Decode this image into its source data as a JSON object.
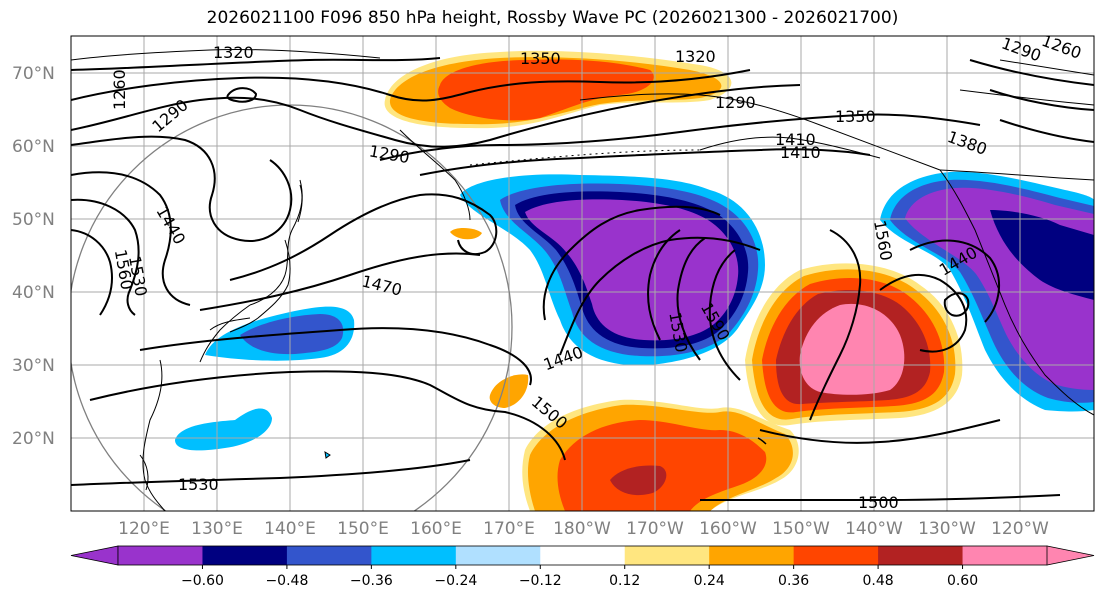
{
  "title": "2026021100 F096 850 hPa height, Rossby Wave PC (2026021300 - 2026021700)",
  "lat_labels": [
    "70°N",
    "60°N",
    "50°N",
    "40°N",
    "30°N",
    "20°N"
  ],
  "lon_labels": [
    "120°E",
    "130°E",
    "140°E",
    "150°E",
    "160°E",
    "170°E",
    "180°W",
    "170°W",
    "160°W",
    "150°W",
    "140°W",
    "130°W",
    "120°W"
  ],
  "colorbar": {
    "tick_labels": [
      "−0.60",
      "−0.48",
      "−0.36",
      "−0.24",
      "−0.12",
      "0.12",
      "0.24",
      "0.36",
      "0.48",
      "0.60"
    ],
    "colors": [
      "#9933cc",
      "#000080",
      "#3355cc",
      "#00bfff",
      "#b0e0ff",
      "#ffffff",
      "#ffe680",
      "#ffa500",
      "#ff4500",
      "#b22222",
      "#ff85b0"
    ],
    "extend": "both"
  },
  "contour_labels": [
    "1320",
    "1350",
    "1320",
    "1290",
    "1260",
    "1290",
    "1290",
    "1350",
    "1410",
    "1410",
    "1380",
    "1290",
    "1260",
    "1440",
    "1560",
    "1530",
    "1470",
    "1440",
    "1530",
    "1590",
    "1560",
    "1440",
    "1500",
    "1530",
    "1500"
  ],
  "colors": {
    "purple": "#9933cc",
    "navy": "#000080",
    "blue": "#3355cc",
    "cyan": "#00bfff",
    "lightblue": "#b0e0ff",
    "yellow": "#ffe680",
    "orange": "#ffa500",
    "redorange": "#ff4500",
    "firebrick": "#b22222",
    "pink": "#ff85b0"
  }
}
